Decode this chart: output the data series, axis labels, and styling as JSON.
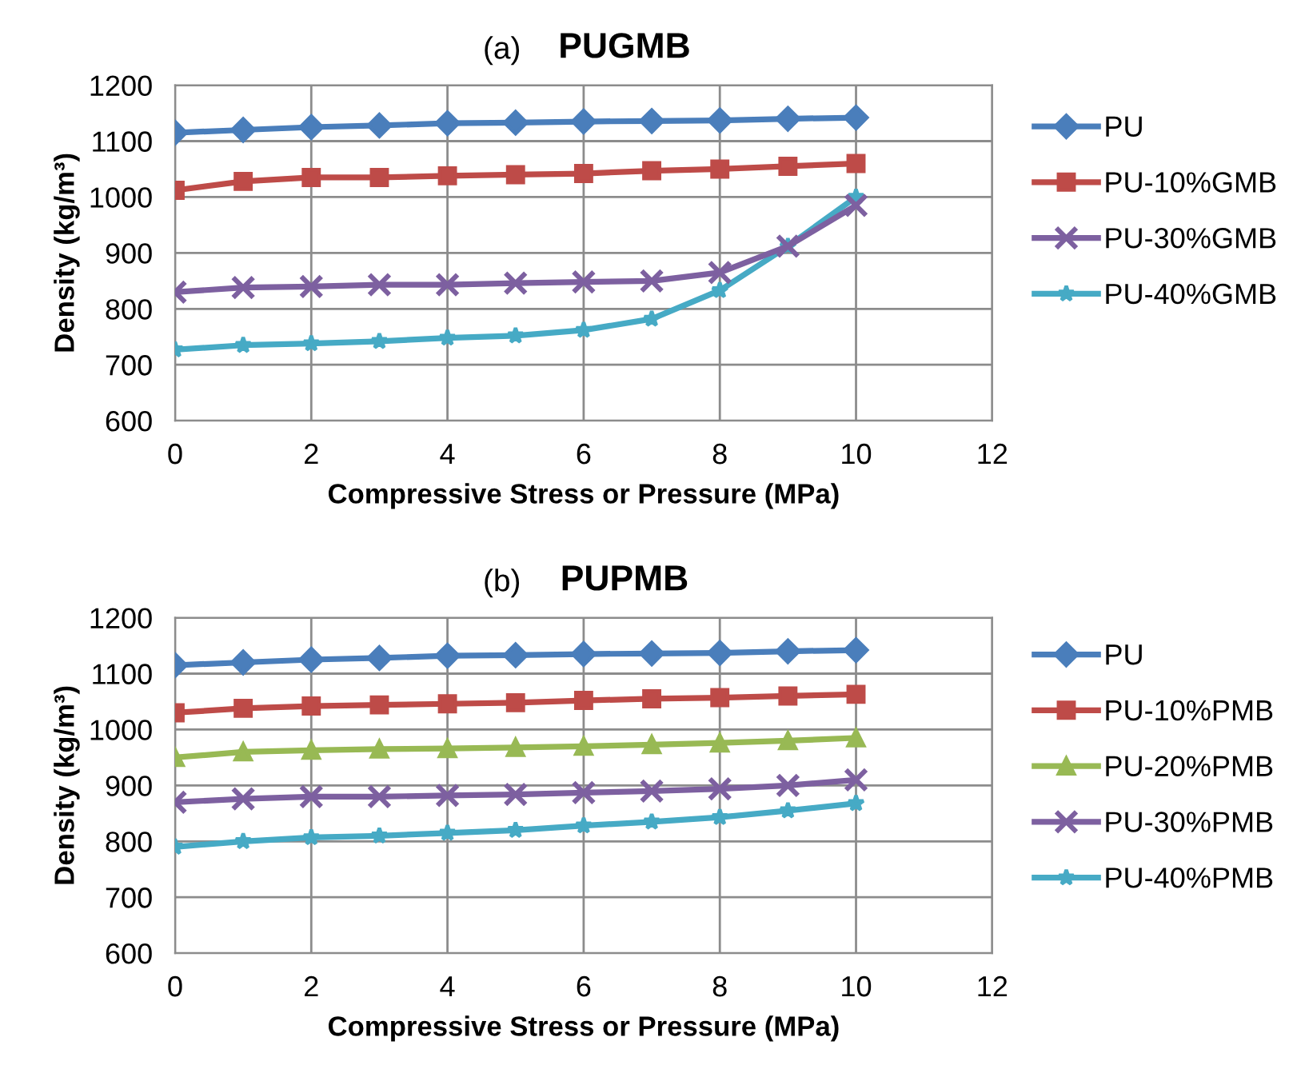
{
  "chart_data": [
    {
      "type": "line",
      "title": "PUGMB",
      "subtitle": "(a)",
      "xlabel": "Compressive Stress or Pressure (MPa)",
      "ylabel": "Density (kg/m³)",
      "x": [
        0,
        1,
        2,
        3,
        4,
        5,
        6,
        7,
        8,
        9,
        10
      ],
      "xlim": [
        0,
        12
      ],
      "xticks": [
        0,
        2,
        4,
        6,
        8,
        10,
        12
      ],
      "ylim": [
        600,
        1200
      ],
      "yticks": [
        600,
        700,
        800,
        900,
        1000,
        1100,
        1200
      ],
      "grid": true,
      "legend": "right",
      "series": [
        {
          "name": "PU",
          "color": "#4a7ebb",
          "marker": "diamond",
          "values": [
            1115,
            1120,
            1125,
            1128,
            1132,
            1133,
            1135,
            1136,
            1137,
            1140,
            1142
          ]
        },
        {
          "name": "PU-10%GMB",
          "color": "#be4b48",
          "marker": "square",
          "values": [
            1012,
            1028,
            1035,
            1035,
            1038,
            1040,
            1042,
            1047,
            1050,
            1055,
            1060
          ]
        },
        {
          "name": "PU-30%GMB",
          "color": "#7d60a0",
          "marker": "cross",
          "values": [
            830,
            838,
            840,
            843,
            843,
            846,
            848,
            850,
            865,
            912,
            985
          ]
        },
        {
          "name": "PU-40%GMB",
          "color": "#46aac5",
          "marker": "star",
          "values": [
            727,
            735,
            738,
            742,
            748,
            752,
            762,
            782,
            833,
            912,
            1000
          ]
        }
      ]
    },
    {
      "type": "line",
      "title": "PUPMB",
      "subtitle": "(b)",
      "xlabel": "Compressive Stress or Pressure (MPa)",
      "ylabel": "Density (kg/m³)",
      "x": [
        0,
        1,
        2,
        3,
        4,
        5,
        6,
        7,
        8,
        9,
        10
      ],
      "xlim": [
        0,
        12
      ],
      "xticks": [
        0,
        2,
        4,
        6,
        8,
        10,
        12
      ],
      "ylim": [
        600,
        1200
      ],
      "yticks": [
        600,
        700,
        800,
        900,
        1000,
        1100,
        1200
      ],
      "grid": true,
      "legend": "right",
      "series": [
        {
          "name": "PU",
          "color": "#4a7ebb",
          "marker": "diamond",
          "values": [
            1115,
            1120,
            1125,
            1128,
            1132,
            1133,
            1135,
            1136,
            1137,
            1140,
            1142
          ]
        },
        {
          "name": "PU-10%PMB",
          "color": "#be4b48",
          "marker": "square",
          "values": [
            1030,
            1038,
            1042,
            1044,
            1046,
            1048,
            1052,
            1055,
            1057,
            1060,
            1063
          ]
        },
        {
          "name": "PU-20%PMB",
          "color": "#98b954",
          "marker": "triangle",
          "values": [
            950,
            960,
            963,
            965,
            966,
            968,
            970,
            973,
            976,
            980,
            985
          ]
        },
        {
          "name": "PU-30%PMB",
          "color": "#7d60a0",
          "marker": "cross",
          "values": [
            870,
            876,
            880,
            880,
            882,
            884,
            887,
            890,
            894,
            900,
            910
          ]
        },
        {
          "name": "PU-40%PMB",
          "color": "#46aac5",
          "marker": "star",
          "values": [
            790,
            800,
            807,
            810,
            815,
            820,
            828,
            835,
            843,
            855,
            868
          ]
        }
      ]
    }
  ]
}
